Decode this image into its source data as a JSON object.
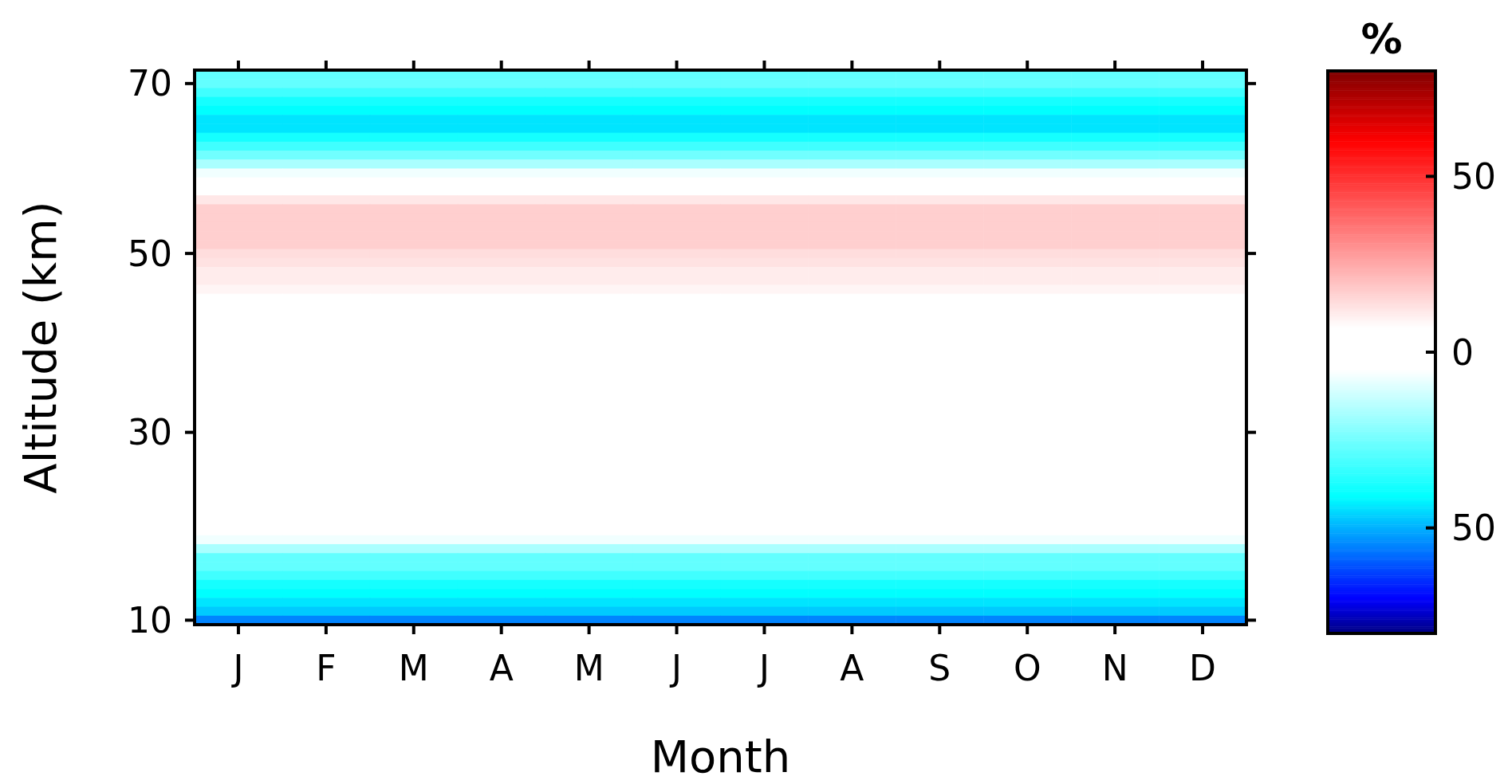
{
  "chart_data": {
    "type": "heatmap",
    "xlabel": "Month",
    "ylabel": "Altitude (km)",
    "clabel": "%",
    "categories": [
      "J",
      "F",
      "M",
      "A",
      "M",
      "J",
      "J",
      "A",
      "S",
      "O",
      "N",
      "D"
    ],
    "y_categories": [
      null,
      "70",
      null,
      null,
      null,
      null,
      null,
      null,
      null,
      null,
      null,
      null,
      null,
      null,
      null,
      null,
      null,
      null,
      null,
      null,
      "50",
      null,
      null,
      null,
      null,
      null,
      null,
      null,
      null,
      null,
      null,
      null,
      null,
      null,
      null,
      null,
      null,
      null,
      null,
      null,
      "30",
      null,
      null,
      null,
      null,
      null,
      null,
      null,
      null,
      null,
      null,
      null,
      null,
      null,
      null,
      null,
      null,
      null,
      null,
      null,
      null,
      "10"
    ],
    "clim": [
      -80,
      80
    ],
    "cticks": [
      {
        "value": -50,
        "label": "50"
      },
      0,
      50
    ],
    "cells": [
      [
        -27,
        -27,
        -27,
        -27,
        -27,
        -27,
        -27,
        -27,
        -27,
        -27,
        -27,
        -27
      ],
      [
        -27,
        -27,
        -27,
        -27,
        -27,
        -27,
        -27,
        -27,
        -27,
        -27,
        -27,
        -27
      ],
      [
        -32,
        -32,
        -32,
        -32,
        -32,
        -32,
        -32,
        -32,
        -32,
        -32,
        -32,
        -32
      ],
      [
        -38,
        -38,
        -38,
        -38,
        -38,
        -38,
        -38,
        -38,
        -38,
        -38,
        -38,
        -38
      ],
      [
        -41,
        -41,
        -41,
        -41,
        -41,
        -41,
        -41,
        -41,
        -41,
        -41,
        -41,
        -41
      ],
      [
        -44,
        -44,
        -44,
        -44,
        -44,
        -44,
        -44,
        -44,
        -44,
        -44,
        -44,
        -44
      ],
      [
        -44,
        -44,
        -44,
        -44,
        -44,
        -44,
        -44,
        -44,
        -44,
        -44,
        -44,
        -44
      ],
      [
        -38,
        -38,
        -38,
        -38,
        -38,
        -38,
        -38,
        -38,
        -38,
        -38,
        -38,
        -38
      ],
      [
        -32,
        -32,
        -32,
        -32,
        -32,
        -32,
        -32,
        -32,
        -32,
        -32,
        -32,
        -32
      ],
      [
        -25,
        -25,
        -25,
        -25,
        -25,
        -25,
        -25,
        -25,
        -25,
        -25,
        -25,
        -25
      ],
      [
        -17,
        -17,
        -17,
        -17,
        -17,
        -17,
        -17,
        -17,
        -17,
        -17,
        -17,
        -17
      ],
      [
        -7,
        -7,
        -7,
        -7,
        -7,
        -7,
        -7,
        -7,
        -7,
        -7,
        -7,
        -7
      ],
      [
        0,
        0,
        0,
        0,
        0,
        0,
        0,
        0,
        0,
        0,
        0,
        0
      ],
      [
        0,
        0,
        0,
        0,
        0,
        0,
        0,
        0,
        0,
        0,
        0,
        0
      ],
      [
        12,
        12,
        12,
        12,
        12,
        12,
        12,
        12,
        12,
        12,
        12,
        12
      ],
      [
        17,
        17,
        17,
        17,
        17,
        17,
        17,
        17,
        17,
        17,
        17,
        17
      ],
      [
        17,
        17,
        17,
        17,
        17,
        17,
        17,
        17,
        17,
        17,
        17,
        17
      ],
      [
        17,
        17,
        17,
        17,
        17,
        17,
        17,
        17,
        17,
        17,
        17,
        17
      ],
      [
        17,
        17,
        17,
        17,
        17,
        17,
        17,
        17,
        17,
        17,
        17,
        17
      ],
      [
        17,
        17,
        17,
        17,
        17,
        17,
        17,
        17,
        17,
        17,
        17,
        17
      ],
      [
        14,
        14,
        14,
        14,
        14,
        14,
        14,
        14,
        14,
        14,
        14,
        14
      ],
      [
        13,
        13,
        13,
        13,
        13,
        13,
        13,
        13,
        13,
        13,
        13,
        13
      ],
      [
        11,
        11,
        11,
        11,
        11,
        11,
        11,
        11,
        11,
        11,
        11,
        11
      ],
      [
        11,
        11,
        11,
        11,
        11,
        11,
        11,
        11,
        11,
        11,
        11,
        11
      ],
      [
        9,
        9,
        9,
        9,
        9,
        9,
        9,
        9,
        9,
        9,
        9,
        9
      ],
      [
        0,
        0,
        0,
        0,
        0,
        0,
        0,
        0,
        0,
        0,
        0,
        0
      ],
      [
        0,
        0,
        0,
        0,
        0,
        0,
        0,
        0,
        0,
        0,
        0,
        0
      ],
      [
        0,
        0,
        0,
        0,
        0,
        0,
        0,
        0,
        0,
        0,
        0,
        0
      ],
      [
        0,
        0,
        0,
        0,
        0,
        0,
        0,
        0,
        0,
        0,
        0,
        0
      ],
      [
        0,
        0,
        0,
        0,
        0,
        0,
        0,
        0,
        0,
        0,
        0,
        0
      ],
      [
        0,
        0,
        0,
        0,
        0,
        0,
        0,
        0,
        0,
        0,
        0,
        0
      ],
      [
        0,
        0,
        0,
        0,
        0,
        0,
        0,
        0,
        0,
        0,
        0,
        0
      ],
      [
        0,
        0,
        0,
        0,
        0,
        0,
        0,
        0,
        0,
        0,
        0,
        0
      ],
      [
        0,
        0,
        0,
        0,
        0,
        0,
        0,
        0,
        0,
        0,
        0,
        0
      ],
      [
        0,
        0,
        0,
        0,
        0,
        0,
        0,
        0,
        0,
        0,
        0,
        0
      ],
      [
        0,
        0,
        0,
        0,
        0,
        0,
        0,
        0,
        0,
        0,
        0,
        0
      ],
      [
        0,
        0,
        0,
        0,
        0,
        0,
        0,
        0,
        0,
        0,
        0,
        0
      ],
      [
        0,
        0,
        0,
        0,
        0,
        0,
        0,
        0,
        0,
        0,
        0,
        0
      ],
      [
        0,
        0,
        0,
        0,
        0,
        0,
        0,
        0,
        0,
        0,
        0,
        0
      ],
      [
        0,
        0,
        0,
        0,
        0,
        0,
        0,
        0,
        0,
        0,
        0,
        0
      ],
      [
        0,
        0,
        0,
        0,
        0,
        0,
        0,
        0,
        0,
        0,
        0,
        0
      ],
      [
        0,
        0,
        0,
        0,
        0,
        0,
        0,
        0,
        0,
        0,
        0,
        0
      ],
      [
        0,
        0,
        0,
        0,
        0,
        0,
        0,
        0,
        0,
        0,
        0,
        0
      ],
      [
        0,
        0,
        0,
        0,
        0,
        0,
        0,
        0,
        0,
        0,
        0,
        0
      ],
      [
        0,
        0,
        0,
        0,
        0,
        0,
        0,
        0,
        0,
        0,
        0,
        0
      ],
      [
        0,
        0,
        0,
        0,
        0,
        0,
        0,
        0,
        0,
        0,
        0,
        0
      ],
      [
        0,
        0,
        0,
        0,
        0,
        0,
        0,
        0,
        0,
        0,
        0,
        0
      ],
      [
        0,
        0,
        0,
        0,
        0,
        0,
        0,
        0,
        0,
        0,
        0,
        0
      ],
      [
        0,
        0,
        0,
        0,
        0,
        0,
        0,
        0,
        0,
        0,
        0,
        0
      ],
      [
        0,
        0,
        0,
        0,
        0,
        0,
        0,
        0,
        0,
        0,
        0,
        0
      ],
      [
        0,
        0,
        0,
        0,
        0,
        0,
        0,
        0,
        0,
        0,
        0,
        0
      ],
      [
        0,
        0,
        0,
        0,
        0,
        0,
        0,
        0,
        0,
        0,
        0,
        0
      ],
      [
        -7,
        -7,
        -7,
        -7,
        -7,
        -7,
        -7,
        -7,
        -7,
        -7,
        -7,
        -7
      ],
      [
        -17,
        -17,
        -17,
        -17,
        -17,
        -17,
        -17,
        -17,
        -17,
        -17,
        -17,
        -17
      ],
      [
        -27,
        -27,
        -27,
        -27,
        -27,
        -27,
        -27,
        -27,
        -27,
        -27,
        -27,
        -27
      ],
      [
        -27,
        -27,
        -27,
        -27,
        -27,
        -27,
        -27,
        -27,
        -27,
        -27,
        -27,
        -27
      ],
      [
        -32,
        -32,
        -32,
        -32,
        -32,
        -32,
        -32,
        -32,
        -32,
        -32,
        -32,
        -32
      ],
      [
        -38,
        -38,
        -38,
        -38,
        -38,
        -38,
        -38,
        -38,
        -38,
        -38,
        -38,
        -38
      ],
      [
        -41,
        -41,
        -41,
        -41,
        -41,
        -41,
        -41,
        -41,
        -41,
        -41,
        -41,
        -41
      ],
      [
        -44,
        -44,
        -44,
        -44,
        -44,
        -44,
        -44,
        -44,
        -44,
        -44,
        -44,
        -44
      ],
      [
        -47,
        -47,
        -47,
        -47,
        -47,
        -47,
        -47,
        -47,
        -47,
        -47,
        -47,
        -47
      ],
      [
        -55,
        -55,
        -55,
        -55,
        -55,
        -55,
        -55,
        -55,
        -55,
        -55,
        -55,
        -55
      ]
    ]
  }
}
